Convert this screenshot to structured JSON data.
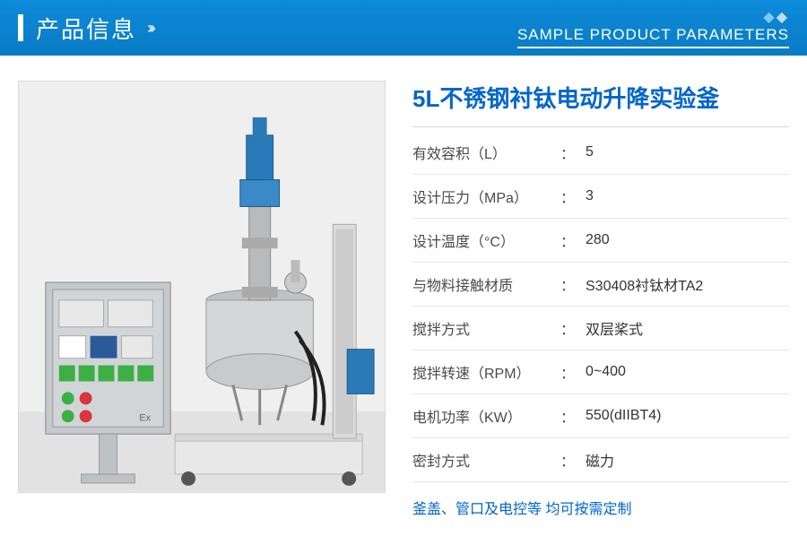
{
  "header": {
    "title": "产品信息",
    "subtitle": "SAMPLE PRODUCT PARAMETERS"
  },
  "product": {
    "title": "5L不锈钢衬钛电动升降实验釜",
    "specs": [
      {
        "label": "有效容积（L）",
        "value": "5"
      },
      {
        "label": "设计压力（MPa）",
        "value": "3"
      },
      {
        "label": "设计温度（°C）",
        "value": "280"
      },
      {
        "label": "与物料接触材质",
        "value": "S30408衬钛材TA2"
      },
      {
        "label": "搅拌方式",
        "value": "双层桨式"
      },
      {
        "label": "搅拌转速（RPM）",
        "value": "0~400"
      },
      {
        "label": "电机功率（KW）",
        "value": "550(dIIBT4)"
      },
      {
        "label": "密封方式",
        "value": "磁力"
      }
    ],
    "footer_note": "釜盖、管口及电控等 均可按需定制"
  },
  "colors": {
    "primary": "#0066cc",
    "header_bg": "#0d8bd9",
    "border": "#d9d9d9",
    "text": "#4a4a4a"
  },
  "image": {
    "description": "stainless-steel-reactor-with-control-panel",
    "panel_color": "#c5c9cc",
    "motor_color": "#2a7ab8",
    "vessel_color": "#d4d6d8",
    "base_color": "#e8e8e8",
    "button_green": "#3cb043",
    "button_red": "#d9363e"
  }
}
